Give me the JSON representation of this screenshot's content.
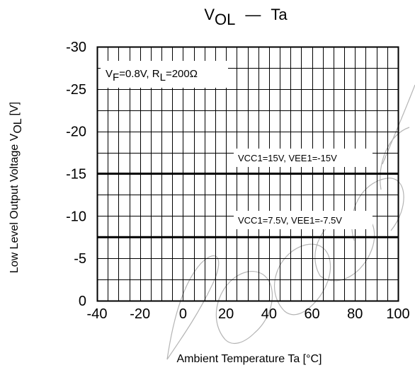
{
  "chart_data": {
    "type": "line",
    "title": {
      "main": "V",
      "main_sub": "OL",
      "dash": "—",
      "rest": "Ta"
    },
    "xlabel": "Ambient Temperature Ta [°C]",
    "ylabel": {
      "main": "Low Level Output Voltage V",
      "sub": "OL",
      "unit": " [V]"
    },
    "xlim": [
      -40,
      100
    ],
    "ylim": [
      0,
      -30
    ],
    "x_ticks": [
      -40,
      -20,
      0,
      20,
      40,
      60,
      80,
      100
    ],
    "x_tick_labels": [
      "-40",
      "-20",
      "0",
      "20",
      "40",
      "60",
      "80",
      "100"
    ],
    "y_ticks": [
      0,
      -5,
      -10,
      -15,
      -20,
      -25,
      -30
    ],
    "y_tick_labels": [
      "0",
      "-5",
      "-10",
      "-15",
      "-20",
      "-25",
      "-30"
    ],
    "minor_x_step": 5,
    "minor_y_step": 2.5,
    "grid": true,
    "series": [
      {
        "x": [
          -40,
          100
        ],
        "y": [
          -15,
          -15
        ],
        "label": {
          "pre": "V",
          "sub1": "CC1",
          "mid": "=15V, V",
          "sub2": "EE1",
          "post": "=-15V"
        }
      },
      {
        "x": [
          -40,
          100
        ],
        "y": [
          -7.5,
          -7.5
        ],
        "label": {
          "pre": "V",
          "sub1": "CC1",
          "mid": "=7.5V, V",
          "sub2": "EE1",
          "post": "=-7.5V"
        }
      }
    ],
    "condition": {
      "pre": "V",
      "sub1": "F",
      "mid": "=0.8V, R",
      "sub2": "L",
      "post": "=200Ω"
    },
    "colors": {
      "line": "#000000",
      "grid": "#000000",
      "watermark": "#b4b4b4"
    }
  }
}
